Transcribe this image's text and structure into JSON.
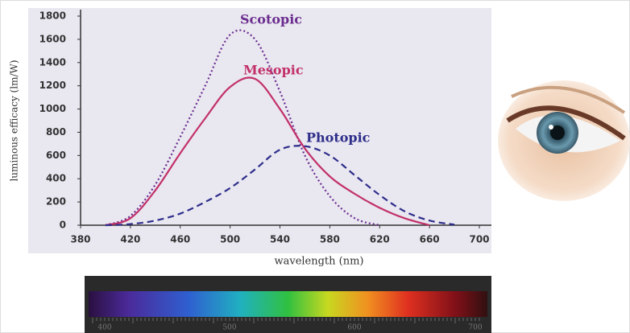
{
  "chart_data": {
    "type": "line",
    "x_label": "wavelength (nm)",
    "y_label": "luminous efficacy (lm/W)",
    "x": [
      380,
      400,
      420,
      440,
      460,
      480,
      500,
      520,
      540,
      560,
      580,
      600,
      620,
      640,
      660,
      680,
      700
    ],
    "series": [
      {
        "name": "Scotopic",
        "color": "#6b2d8f",
        "dash": "2,3",
        "values": [
          null,
          0,
          80,
          350,
          760,
          1200,
          1640,
          1600,
          1150,
          600,
          250,
          60,
          0,
          null,
          null,
          null,
          null
        ]
      },
      {
        "name": "Mesopic",
        "color": "#c2306a",
        "dash": "",
        "values": [
          null,
          0,
          60,
          300,
          620,
          920,
          1190,
          1260,
          1000,
          660,
          420,
          270,
          150,
          60,
          0,
          null,
          null
        ]
      },
      {
        "name": "Photopic",
        "color": "#2d2d8a",
        "dash": "8,5",
        "values": [
          null,
          0,
          10,
          40,
          100,
          200,
          320,
          480,
          650,
          680,
          600,
          430,
          260,
          120,
          40,
          5,
          null
        ]
      }
    ],
    "xlim": [
      380,
      700
    ],
    "ylim": [
      0,
      1800
    ],
    "xticks": [
      380,
      420,
      460,
      500,
      540,
      580,
      620,
      660,
      700
    ],
    "yticks": [
      0,
      200,
      400,
      600,
      800,
      1000,
      1200,
      1400,
      1600,
      1800
    ],
    "spectrum": {
      "labels": [
        "400",
        "500",
        "600",
        "700"
      ]
    }
  }
}
